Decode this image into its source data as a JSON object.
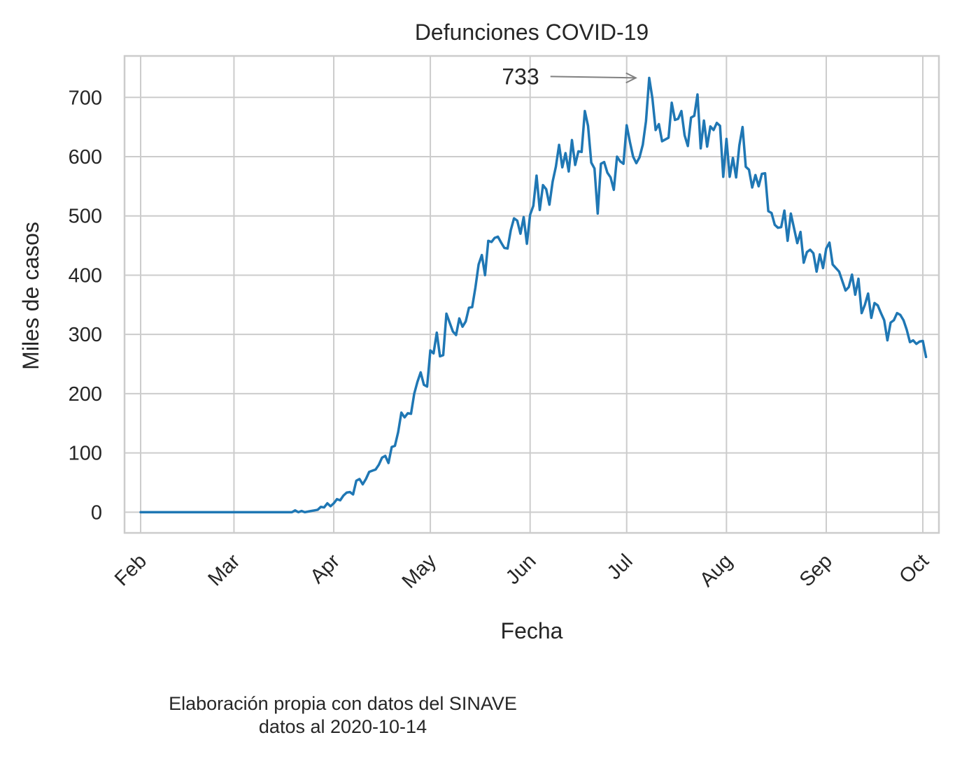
{
  "chart_data": {
    "type": "line",
    "title": "Defunciones COVID-19",
    "xlabel": "Fecha",
    "ylabel": "Miles de casos",
    "x_start": "2020-02-01",
    "x_ticks": [
      "Feb",
      "Mar",
      "Apr",
      "May",
      "Jun",
      "Jul",
      "Aug",
      "Sep",
      "Oct"
    ],
    "y_ticks": [
      0,
      100,
      200,
      300,
      400,
      500,
      600,
      700
    ],
    "xlim": [
      "2020-01-27",
      "2020-10-06"
    ],
    "ylim": [
      -35,
      770
    ],
    "grid": true,
    "color": "#1f77b4",
    "annotation": {
      "text": "733",
      "x": "2020-07-06",
      "y": 733
    },
    "series": [
      {
        "values": [
          0,
          0,
          0,
          0,
          0,
          0,
          0,
          0,
          0,
          0,
          0,
          0,
          0,
          0,
          0,
          0,
          0,
          0,
          0,
          0,
          0,
          0,
          0,
          0,
          0,
          0,
          0,
          0,
          0,
          0,
          0,
          0,
          0,
          0,
          0,
          0,
          0,
          0,
          0,
          0,
          0,
          0,
          0,
          0,
          0,
          0,
          0,
          0,
          3,
          0,
          2,
          0,
          1,
          2,
          3,
          4,
          9,
          8,
          15,
          10,
          15,
          22,
          20,
          28,
          33,
          34,
          30,
          53,
          56,
          47,
          56,
          68,
          70,
          72,
          80,
          92,
          95,
          83,
          110,
          112,
          135,
          168,
          160,
          167,
          166,
          200,
          220,
          236,
          215,
          212,
          273,
          268,
          303,
          263,
          265,
          335,
          320,
          305,
          299,
          327,
          313,
          322,
          345,
          346,
          379,
          418,
          434,
          400,
          458,
          456,
          463,
          465,
          455,
          446,
          445,
          476,
          496,
          492,
          470,
          498,
          453,
          502,
          517,
          568,
          510,
          552,
          545,
          519,
          558,
          583,
          620,
          582,
          606,
          575,
          628,
          586,
          609,
          608,
          677,
          652,
          590,
          580,
          504,
          588,
          591,
          573,
          565,
          544,
          600,
          592,
          588,
          653,
          625,
          600,
          589,
          599,
          620,
          660,
          733,
          698,
          645,
          655,
          626,
          629,
          632,
          691,
          662,
          664,
          677,
          636,
          618,
          666,
          669,
          705,
          614,
          661,
          617,
          651,
          645,
          657,
          652,
          566,
          630,
          566,
          598,
          565,
          619,
          650,
          583,
          578,
          548,
          569,
          550,
          571,
          572,
          508,
          505,
          485,
          480,
          481,
          509,
          458,
          504,
          479,
          454,
          473,
          421,
          439,
          443,
          437,
          406,
          435,
          412,
          445,
          455,
          418,
          412,
          406,
          390,
          374,
          380,
          401,
          367,
          394,
          336,
          350,
          369,
          328,
          353,
          349,
          336,
          324,
          290,
          320,
          324,
          336,
          333,
          324,
          308,
          287,
          290,
          284,
          288,
          289,
          262
        ]
      }
    ]
  },
  "footer": {
    "line1": "Elaboración propia con datos del SINAVE",
    "line2": "datos al 2020-10-14"
  }
}
